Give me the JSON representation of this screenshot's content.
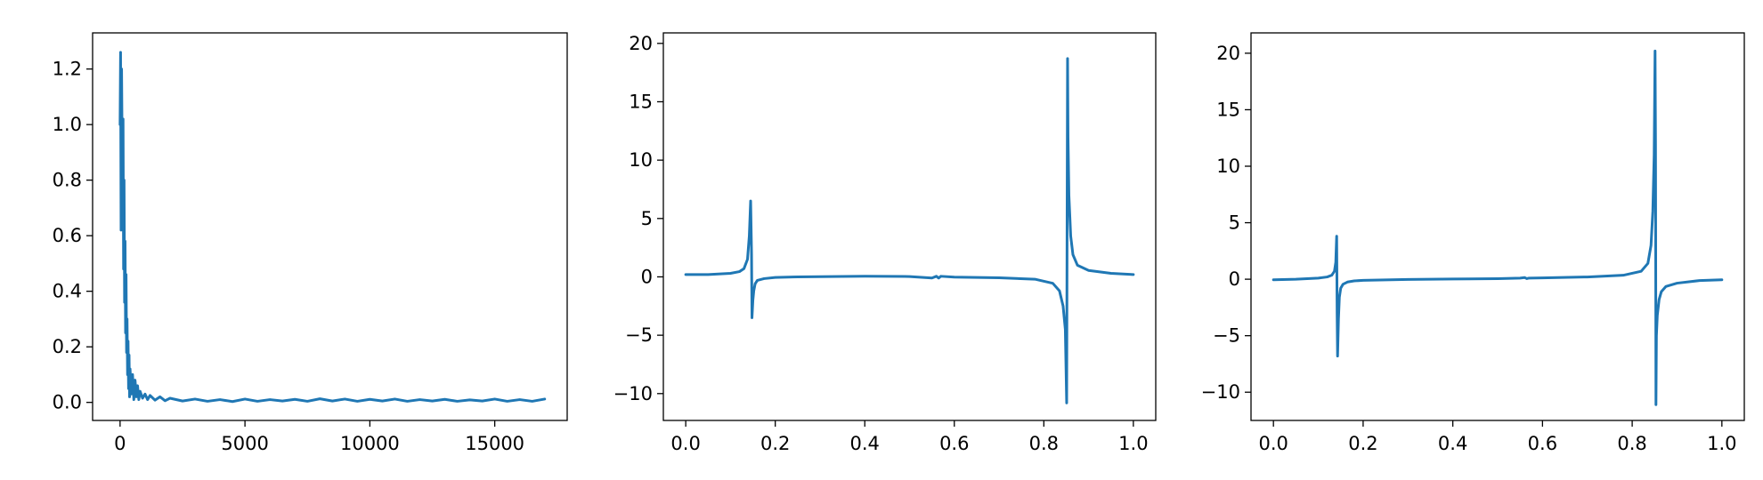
{
  "chart_data": [
    {
      "type": "line",
      "title": "",
      "xlabel": "",
      "ylabel": "",
      "xlim": [
        -1100,
        17900
      ],
      "ylim": [
        -0.065,
        1.33
      ],
      "xticks": [
        0,
        5000,
        10000,
        15000
      ],
      "xtick_labels": [
        "0",
        "5000",
        "10000",
        "15000"
      ],
      "yticks": [
        0.0,
        0.2,
        0.4,
        0.6,
        0.8,
        1.0,
        1.2
      ],
      "ytick_labels": [
        "0.0",
        "0.2",
        "0.4",
        "0.6",
        "0.8",
        "1.0",
        "1.2"
      ],
      "grid": false,
      "color": "#1f77b4",
      "series": [
        {
          "x": [
            0,
            20,
            40,
            60,
            80,
            100,
            120,
            140,
            160,
            180,
            200,
            220,
            240,
            260,
            280,
            300,
            320,
            340,
            360,
            380,
            400,
            450,
            500,
            550,
            600,
            650,
            700,
            750,
            800,
            900,
            1000,
            1100,
            1200,
            1400,
            1600,
            1800,
            2000,
            2500,
            3000,
            3500,
            4000,
            4500,
            5000,
            5500,
            6000,
            6500,
            7000,
            7500,
            8000,
            8500,
            9000,
            9500,
            10000,
            10500,
            11000,
            11500,
            12000,
            12500,
            13000,
            13500,
            14000,
            14500,
            15000,
            15500,
            16000,
            16500,
            17000
          ],
          "y": [
            1.0,
            1.26,
            0.62,
            1.2,
            0.95,
            0.7,
            1.02,
            0.48,
            0.8,
            0.36,
            0.58,
            0.25,
            0.46,
            0.18,
            0.3,
            0.1,
            0.22,
            0.05,
            0.17,
            0.02,
            0.12,
            0.03,
            0.1,
            0.01,
            0.08,
            0.02,
            0.06,
            0.01,
            0.04,
            0.015,
            0.03,
            0.01,
            0.025,
            0.008,
            0.02,
            0.006,
            0.015,
            0.005,
            0.012,
            0.004,
            0.01,
            0.003,
            0.012,
            0.004,
            0.01,
            0.005,
            0.011,
            0.004,
            0.013,
            0.005,
            0.012,
            0.004,
            0.011,
            0.005,
            0.012,
            0.004,
            0.01,
            0.005,
            0.011,
            0.004,
            0.009,
            0.005,
            0.012,
            0.004,
            0.01,
            0.004,
            0.012
          ]
        }
      ]
    },
    {
      "type": "line",
      "title": "",
      "xlabel": "",
      "ylabel": "",
      "xlim": [
        -0.05,
        1.05
      ],
      "ylim": [
        -12.3,
        20.9
      ],
      "xticks": [
        0.0,
        0.2,
        0.4,
        0.6,
        0.8,
        1.0
      ],
      "xtick_labels": [
        "0.0",
        "0.2",
        "0.4",
        "0.6",
        "0.8",
        "1.0"
      ],
      "yticks": [
        -10,
        -5,
        0,
        5,
        10,
        15,
        20
      ],
      "ytick_labels": [
        "−10",
        "−5",
        "0",
        "5",
        "10",
        "15",
        "20"
      ],
      "grid": false,
      "color": "#1f77b4",
      "series": [
        {
          "x": [
            0.0,
            0.05,
            0.1,
            0.12,
            0.13,
            0.138,
            0.142,
            0.145,
            0.147,
            0.148,
            0.15,
            0.152,
            0.155,
            0.16,
            0.175,
            0.2,
            0.25,
            0.3,
            0.4,
            0.5,
            0.55,
            0.56,
            0.565,
            0.57,
            0.6,
            0.7,
            0.78,
            0.82,
            0.835,
            0.843,
            0.848,
            0.851,
            0.852,
            0.853,
            0.854,
            0.856,
            0.86,
            0.865,
            0.875,
            0.9,
            0.95,
            1.0
          ],
          "y": [
            0.2,
            0.2,
            0.3,
            0.45,
            0.7,
            1.5,
            3.5,
            6.5,
            2.0,
            -3.5,
            -2.0,
            -1.2,
            -0.6,
            -0.3,
            -0.15,
            -0.05,
            0.0,
            0.02,
            0.05,
            0.03,
            -0.1,
            0.05,
            -0.1,
            0.05,
            -0.02,
            -0.08,
            -0.2,
            -0.55,
            -1.2,
            -2.5,
            -4.5,
            -10.8,
            5.0,
            18.7,
            12.0,
            7.0,
            3.5,
            1.9,
            1.0,
            0.55,
            0.3,
            0.2
          ]
        }
      ]
    },
    {
      "type": "line",
      "title": "",
      "xlabel": "",
      "ylabel": "",
      "xlim": [
        -0.05,
        1.05
      ],
      "ylim": [
        -12.5,
        21.8
      ],
      "xticks": [
        0.0,
        0.2,
        0.4,
        0.6,
        0.8,
        1.0
      ],
      "xtick_labels": [
        "0.0",
        "0.2",
        "0.4",
        "0.6",
        "0.8",
        "1.0"
      ],
      "yticks": [
        -10,
        -5,
        0,
        5,
        10,
        15,
        20
      ],
      "ytick_labels": [
        "−10",
        "−5",
        "0",
        "5",
        "10",
        "15",
        "20"
      ],
      "grid": false,
      "color": "#1f77b4",
      "series": [
        {
          "x": [
            0.0,
            0.05,
            0.1,
            0.12,
            0.13,
            0.136,
            0.139,
            0.141,
            0.142,
            0.143,
            0.145,
            0.147,
            0.15,
            0.155,
            0.165,
            0.18,
            0.2,
            0.3,
            0.4,
            0.5,
            0.55,
            0.56,
            0.565,
            0.57,
            0.6,
            0.7,
            0.78,
            0.82,
            0.835,
            0.842,
            0.846,
            0.849,
            0.851,
            0.852,
            0.853,
            0.854,
            0.856,
            0.86,
            0.865,
            0.875,
            0.9,
            0.95,
            1.0
          ],
          "y": [
            -0.05,
            0.0,
            0.1,
            0.2,
            0.35,
            0.7,
            1.5,
            3.8,
            -3.0,
            -6.8,
            -3.5,
            -1.6,
            -0.8,
            -0.45,
            -0.25,
            -0.15,
            -0.1,
            -0.02,
            0.02,
            0.05,
            0.1,
            0.15,
            0.05,
            0.1,
            0.12,
            0.2,
            0.35,
            0.7,
            1.4,
            3.0,
            6.0,
            11.0,
            20.2,
            12.0,
            -11.1,
            -5.0,
            -3.2,
            -1.8,
            -1.1,
            -0.65,
            -0.35,
            -0.12,
            -0.05
          ]
        }
      ]
    }
  ]
}
